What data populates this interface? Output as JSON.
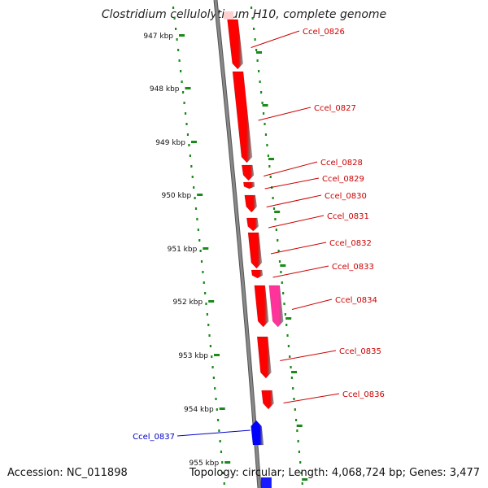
{
  "title": "Clostridium cellulolyticum H10, complete genome",
  "footer": {
    "accession": "Accession: NC_011898",
    "stats": "Topology: circular; Length: 4,068,724 bp; Genes: 3,477"
  },
  "colors": {
    "forward_gene": "#ff0000",
    "forward_gene_alt": "#ff3399",
    "reverse_gene": "#0000ff",
    "forward_label": "#cc0000",
    "reverse_label": "#0000cc",
    "backbone": "#888888",
    "tick": "#1a8a1a"
  },
  "scale_labels": [
    "947 kbp",
    "948 kbp",
    "949 kbp",
    "950 kbp",
    "951 kbp",
    "952 kbp",
    "953 kbp",
    "954 kbp",
    "955 kbp"
  ],
  "genes": [
    {
      "label": "Ccel_0826",
      "strand": "+",
      "color": "#ff0000"
    },
    {
      "label": "Ccel_0827",
      "strand": "+",
      "color": "#ff0000"
    },
    {
      "label": "Ccel_0828",
      "strand": "+",
      "color": "#ff0000"
    },
    {
      "label": "Ccel_0829",
      "strand": "+",
      "color": "#ff0000"
    },
    {
      "label": "Ccel_0830",
      "strand": "+",
      "color": "#ff0000"
    },
    {
      "label": "Ccel_0831",
      "strand": "+",
      "color": "#ff0000"
    },
    {
      "label": "Ccel_0832",
      "strand": "+",
      "color": "#ff0000"
    },
    {
      "label": "Ccel_0833",
      "strand": "+",
      "color": "#ff0000"
    },
    {
      "label": "Ccel_0834",
      "strand": "+",
      "color": "#ff3399"
    },
    {
      "label": "Ccel_0835",
      "strand": "+",
      "color": "#ff0000"
    },
    {
      "label": "Ccel_0836",
      "strand": "+",
      "color": "#ff0000"
    },
    {
      "label": "Ccel_0837",
      "strand": "-",
      "color": "#0000ff"
    }
  ]
}
